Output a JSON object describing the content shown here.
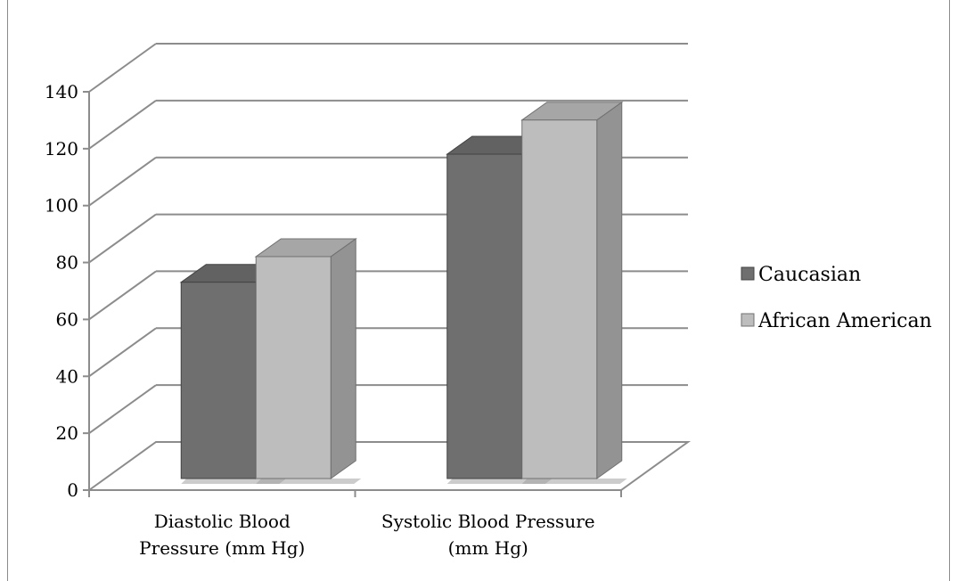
{
  "chart_data": {
    "type": "bar",
    "categories": [
      [
        "Diastolic Blood",
        "Pressure (mm Hg)"
      ],
      [
        "Systolic Blood Pressure",
        "(mm Hg)"
      ]
    ],
    "series": [
      {
        "name": "Caucasian",
        "values": [
          69,
          114
        ],
        "color": "#6f6f6f"
      },
      {
        "name": "African American",
        "values": [
          78,
          126
        ],
        "color": "#bdbdbd"
      }
    ],
    "ylim": [
      0,
      140
    ],
    "yticks": [
      0,
      20,
      40,
      60,
      80,
      100,
      120,
      140
    ],
    "xlabel": "",
    "ylabel": "",
    "title": "",
    "grid": true,
    "legend_position": "right",
    "style": "3d-column"
  }
}
